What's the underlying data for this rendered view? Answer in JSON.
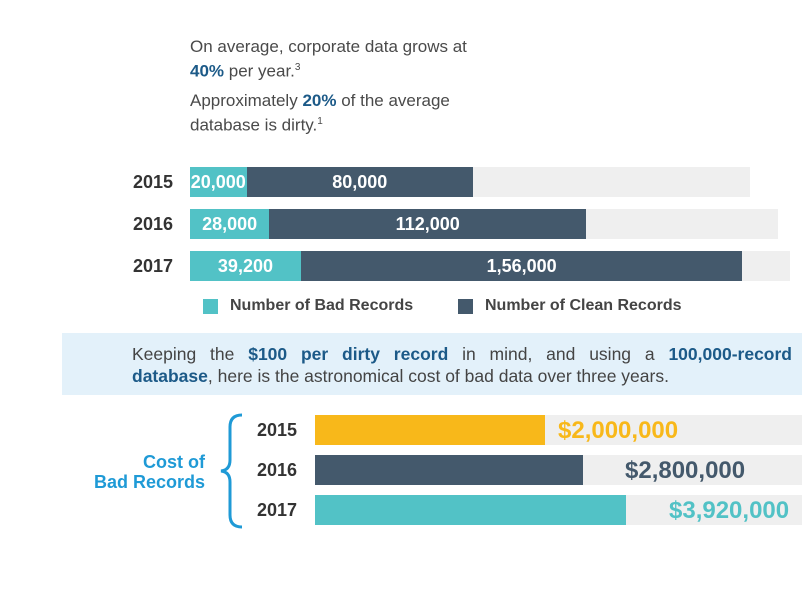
{
  "intro": {
    "line1_pre": "On average, corporate data grows at ",
    "line1_bold": "40%",
    "line1_post": " per year.",
    "line1_sup": "3",
    "line2_pre": "Approximately ",
    "line2_bold": "20%",
    "line2_post": " of the average database is dirty.",
    "line2_sup": "1"
  },
  "note": {
    "pre": "Keeping the ",
    "bold1": "$100 per dirty record",
    "mid": " in mind, and using a ",
    "bold2": "100,000-record database",
    "post": ", here is the astronomical cost of bad data over three years."
  },
  "cost_title_1": "Cost of",
  "cost_title_2": "Bad Records",
  "colors": {
    "bad": "#52c2c6",
    "clean": "#44596c",
    "yellow": "#f8b81a",
    "blue": "#1f9ad6"
  },
  "chart_data": [
    {
      "type": "bar",
      "stacked": true,
      "orientation": "horizontal",
      "categories": [
        "2015",
        "2016",
        "2017"
      ],
      "series": [
        {
          "name": "Number of Bad Records",
          "values": [
            20000,
            28000,
            39200
          ],
          "labels": [
            "20,000",
            "28,000",
            "39,200"
          ]
        },
        {
          "name": "Number of Clean Records",
          "values": [
            80000,
            112000,
            156000
          ],
          "labels": [
            "80,000",
            "112,000",
            "1,56,000"
          ]
        }
      ],
      "legend": "bottom"
    },
    {
      "type": "bar",
      "orientation": "horizontal",
      "title": "Cost of Bad Records",
      "categories": [
        "2015",
        "2016",
        "2017"
      ],
      "values": [
        2000000,
        2800000,
        3920000
      ],
      "labels": [
        "$2,000,000",
        "$2,800,000",
        "$3,920,000"
      ]
    }
  ]
}
